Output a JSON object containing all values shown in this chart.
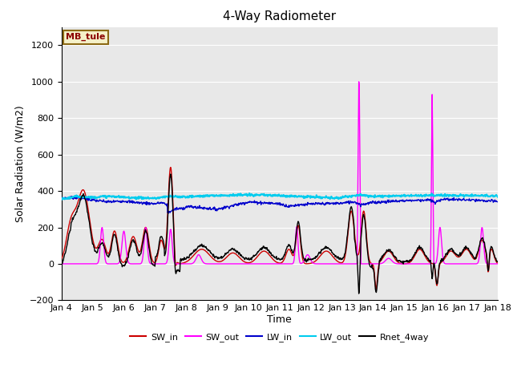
{
  "title": "4-Way Radiometer",
  "xlabel": "Time",
  "ylabel": "Solar Radiation (W/m2)",
  "annotation_text": "MB_tule",
  "annotation_box_color": "#f5f0c8",
  "annotation_border_color": "#8b6914",
  "annotation_text_color": "#8b0000",
  "ylim": [
    -200,
    1300
  ],
  "yticks": [
    -200,
    0,
    200,
    400,
    600,
    800,
    1000,
    1200
  ],
  "xtick_labels": [
    "Jan 4",
    "Jan 5",
    "Jan 6",
    "Jan 7",
    "Jan 8",
    "Jan 9",
    "Jan 10",
    "Jan 11",
    "Jan 12",
    "Jan 13",
    "Jan 14",
    "Jan 15",
    "Jan 16",
    "Jan 17",
    "Jan 18"
  ],
  "bg_color": "#e8e8e8",
  "grid_color": "#ffffff",
  "series": {
    "SW_in": {
      "color": "#cc0000",
      "lw": 1.0
    },
    "SW_out": {
      "color": "#ff00ff",
      "lw": 1.0
    },
    "LW_in": {
      "color": "#0000cc",
      "lw": 1.0
    },
    "LW_out": {
      "color": "#00ccee",
      "lw": 1.5
    },
    "Rnet_4way": {
      "color": "#000000",
      "lw": 1.0
    }
  },
  "legend_entries": [
    "SW_in",
    "SW_out",
    "LW_in",
    "LW_out",
    "Rnet_4way"
  ],
  "legend_colors": [
    "#cc0000",
    "#ff00ff",
    "#0000cc",
    "#00ccee",
    "#000000"
  ]
}
